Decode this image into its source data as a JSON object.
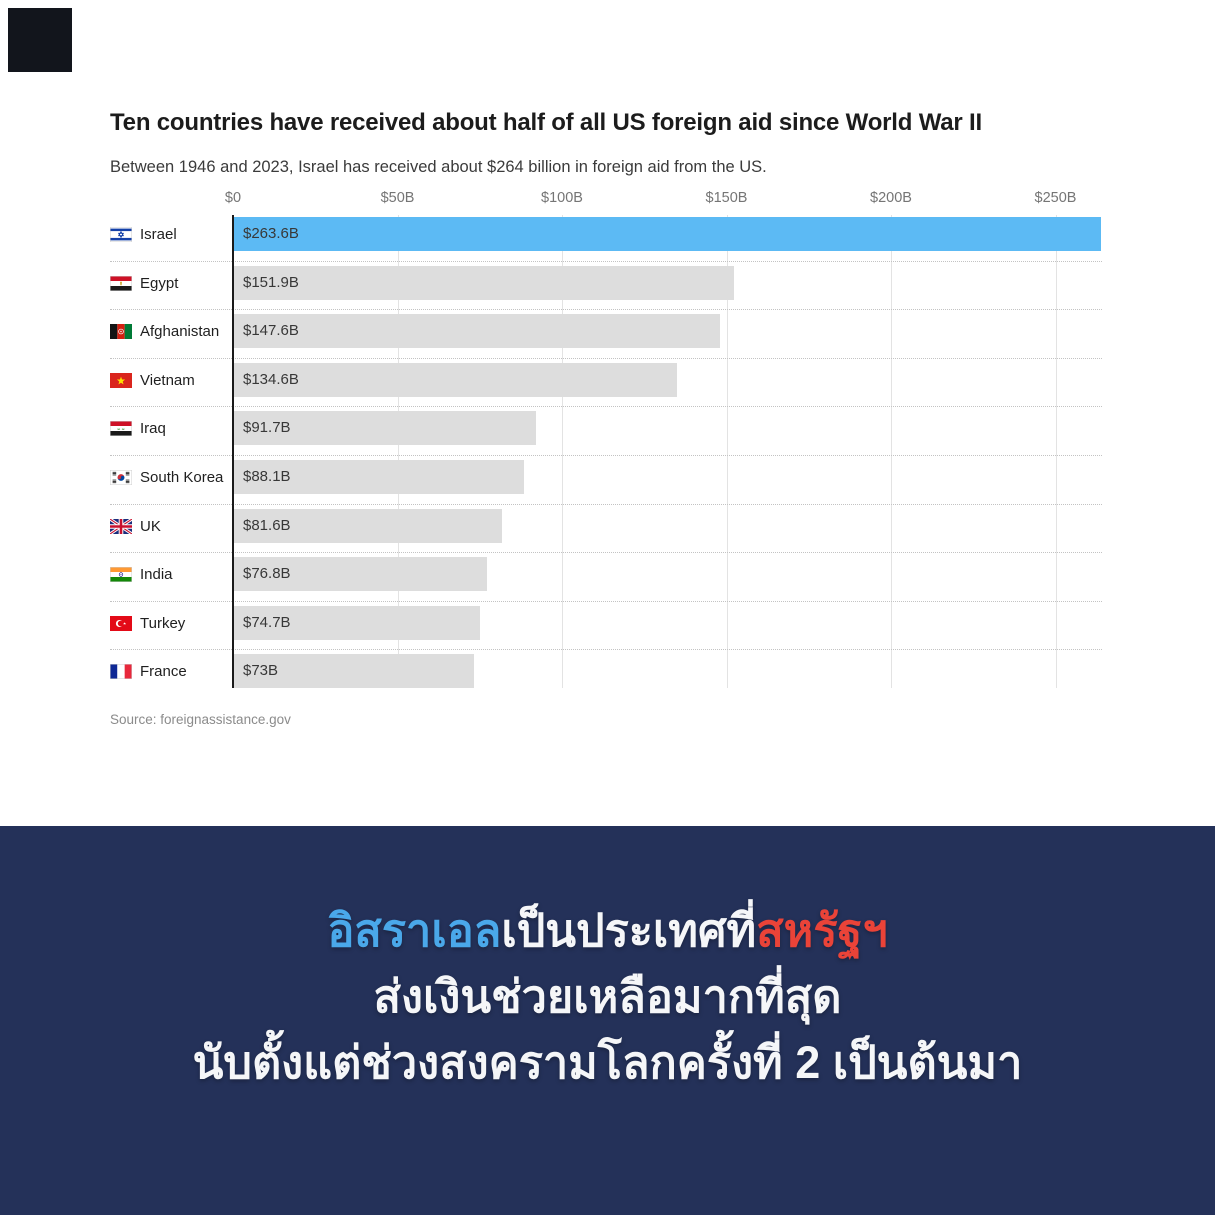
{
  "decor": {
    "corner_square_color": "#12151c"
  },
  "chart_data": {
    "type": "bar",
    "orientation": "horizontal",
    "title": "Ten countries have received about half of all US foreign aid since World War II",
    "subtitle": "Between 1946 and 2023, Israel has received about $264 billion in foreign aid from the US.",
    "source": "Source: foreignassistance.gov",
    "unit": "USD billions",
    "xlim": [
      0,
      263.6
    ],
    "x_tick_labels": [
      "$0",
      "$50B",
      "$100B",
      "$150B",
      "$200B",
      "$250B"
    ],
    "x_tick_values": [
      0,
      50,
      100,
      150,
      200,
      250
    ],
    "grid": "vertical-gridlines-on",
    "legend": "none",
    "colors": {
      "highlight_bar": "#5cbaf4",
      "default_bar": "#dddddd"
    },
    "bars": [
      {
        "country": "Israel",
        "flag": "israel",
        "value": 263.6,
        "label": "$263.6B",
        "highlighted": true
      },
      {
        "country": "Egypt",
        "flag": "egypt",
        "value": 151.9,
        "label": "$151.9B",
        "highlighted": false
      },
      {
        "country": "Afghanistan",
        "flag": "afghanistan",
        "value": 147.6,
        "label": "$147.6B",
        "highlighted": false
      },
      {
        "country": "Vietnam",
        "flag": "vietnam",
        "value": 134.6,
        "label": "$134.6B",
        "highlighted": false
      },
      {
        "country": "Iraq",
        "flag": "iraq",
        "value": 91.7,
        "label": "$91.7B",
        "highlighted": false
      },
      {
        "country": "South Korea",
        "flag": "south-korea",
        "value": 88.1,
        "label": "$88.1B",
        "highlighted": false
      },
      {
        "country": "UK",
        "flag": "uk",
        "value": 81.6,
        "label": "$81.6B",
        "highlighted": false
      },
      {
        "country": "India",
        "flag": "india",
        "value": 76.8,
        "label": "$76.8B",
        "highlighted": false
      },
      {
        "country": "Turkey",
        "flag": "turkey",
        "value": 74.7,
        "label": "$74.7B",
        "highlighted": false
      },
      {
        "country": "France",
        "flag": "france",
        "value": 73,
        "label": "$73B",
        "highlighted": false
      }
    ]
  },
  "banner": {
    "background": "#243159",
    "lines": [
      {
        "segments": [
          {
            "text": "อิสราเอล",
            "color": "#4aa8ea"
          },
          {
            "text": "เป็นประเทศที่",
            "color": "#f5f6f8"
          },
          {
            "text": "สหรัฐฯ",
            "color": "#ea4338"
          }
        ]
      },
      {
        "segments": [
          {
            "text": "ส่งเงินช่วยเหลือมากที่สุด",
            "color": "#f5f6f8"
          }
        ]
      },
      {
        "segments": [
          {
            "text": "นับตั้งแต่ช่วงสงครามโลกครั้งที่ 2 เป็นต้นมา",
            "color": "#f5f6f8"
          }
        ]
      }
    ]
  }
}
